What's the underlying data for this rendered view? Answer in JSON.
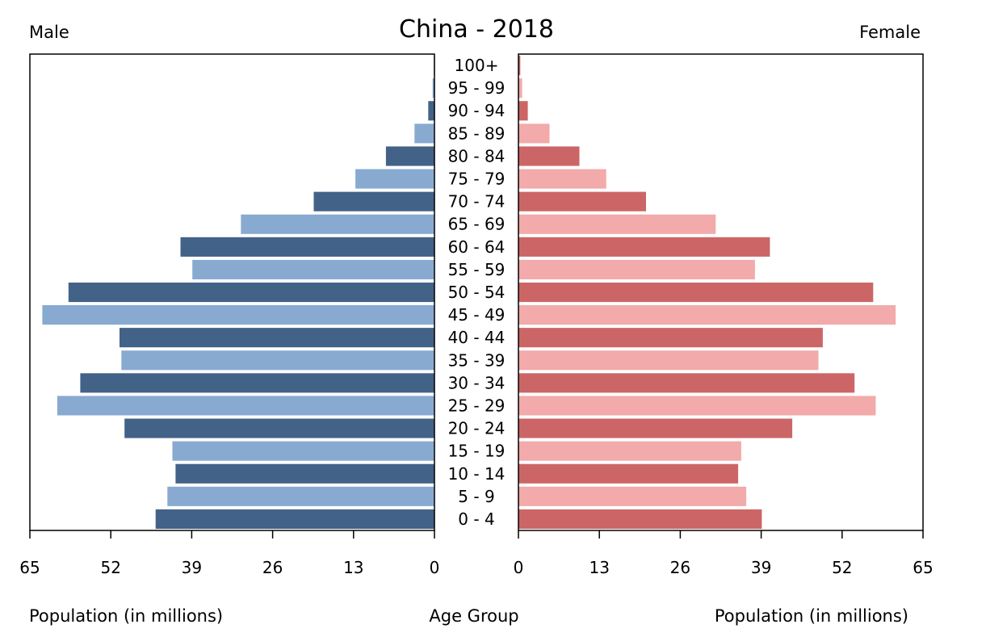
{
  "chart_data": {
    "type": "bar",
    "title": "China - 2018",
    "left_label": "Male",
    "right_label": "Female",
    "xlabel_left": "Population (in millions)",
    "xlabel_center": "Age Group",
    "xlabel_right": "Population (in millions)",
    "xlim": [
      0,
      65
    ],
    "ticks": [
      "65",
      "52",
      "39",
      "26",
      "13",
      "0"
    ],
    "ticks_right": [
      "0",
      "13",
      "26",
      "39",
      "52",
      "65"
    ],
    "categories": [
      "100+",
      "95 - 99",
      "90 - 94",
      "85 - 89",
      "80 - 84",
      "75 - 79",
      "70 - 74",
      "65 - 69",
      "60 - 64",
      "55 - 59",
      "50 - 54",
      "45 - 49",
      "40 - 44",
      "35 - 39",
      "30 - 34",
      "25 - 29",
      "20 - 24",
      "15 - 19",
      "10 - 14",
      "5 - 9",
      "0 - 4"
    ],
    "series": [
      {
        "name": "Male",
        "values": [
          0.1,
          0.3,
          1.0,
          3.2,
          7.8,
          12.7,
          19.4,
          31.1,
          40.8,
          38.9,
          58.8,
          63.0,
          50.6,
          50.3,
          56.9,
          60.6,
          49.8,
          42.1,
          41.6,
          42.9,
          44.8
        ]
      },
      {
        "name": "Female",
        "values": [
          0.3,
          0.6,
          1.5,
          5.0,
          9.8,
          14.1,
          20.5,
          31.7,
          40.4,
          38.0,
          57.0,
          60.6,
          48.9,
          48.2,
          54.0,
          57.4,
          44.0,
          35.8,
          35.3,
          36.6,
          39.1
        ]
      }
    ],
    "colors": {
      "male_dark": "#436288",
      "male_light": "#88aad1",
      "female_dark": "#cc6666",
      "female_light": "#f2aaaa"
    }
  }
}
